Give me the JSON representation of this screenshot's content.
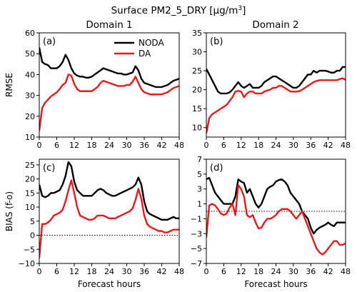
{
  "title_prefix": "Surface PM2_5_DRY [",
  "title_unit_base": "μg/m",
  "title_unit_exp": "3",
  "title_suffix": "]",
  "column_titles": [
    "Domain 1",
    "Domain 2"
  ],
  "xlabel": "Forecast hours",
  "legend": {
    "placement": "upper-right of panel (a)",
    "entries": [
      "NODA",
      "DA"
    ]
  },
  "colors": {
    "NODA": "#000000",
    "DA": "#e41a1c",
    "zero_line": "#000000"
  },
  "chart_data": [
    {
      "type": "line",
      "panel": "(a)",
      "ylabel": "RMSE",
      "xlim": [
        0,
        48
      ],
      "ylim": [
        10,
        60
      ],
      "xticks": [
        0,
        6,
        12,
        18,
        24,
        30,
        36,
        42,
        48
      ],
      "yticks": [
        10,
        20,
        30,
        40,
        50,
        60
      ],
      "zero_line": false,
      "x": [
        0,
        1,
        2,
        3,
        4,
        5,
        6,
        7,
        8,
        9,
        10,
        11,
        12,
        13,
        14,
        15,
        16,
        17,
        18,
        19,
        20,
        21,
        22,
        23,
        24,
        25,
        26,
        27,
        28,
        29,
        30,
        31,
        32,
        33,
        34,
        35,
        36,
        37,
        38,
        39,
        40,
        41,
        42,
        43,
        44,
        45,
        46,
        47,
        48
      ],
      "series": [
        {
          "name": "NODA",
          "values": [
            53,
            46,
            45,
            44.5,
            43,
            43,
            43,
            44,
            46,
            49.5,
            47,
            43,
            40.5,
            39.5,
            39,
            39,
            38.5,
            38.5,
            39,
            40,
            41,
            42,
            43,
            42.5,
            42,
            41.5,
            41,
            40.5,
            40.5,
            40,
            40,
            40.5,
            41,
            44,
            42,
            38,
            36,
            35.5,
            35,
            34.5,
            34,
            34,
            34,
            34.5,
            35,
            36,
            37,
            37.5,
            38
          ]
        },
        {
          "name": "DA",
          "values": [
            13,
            24,
            26.5,
            28,
            29.5,
            30.5,
            31.5,
            33,
            35,
            36,
            40,
            39.5,
            35.5,
            33,
            32,
            32,
            32,
            32,
            32,
            33,
            34,
            36,
            37,
            36.5,
            36,
            35.5,
            35,
            34.5,
            34.5,
            34.5,
            35,
            35,
            36.5,
            39,
            36,
            33,
            31.5,
            31,
            30.5,
            30.5,
            30.5,
            30.5,
            30.5,
            31,
            31.5,
            32.5,
            33.5,
            34,
            34.5
          ]
        }
      ]
    },
    {
      "type": "line",
      "panel": "(b)",
      "ylabel": "",
      "xlim": [
        0,
        48
      ],
      "ylim": [
        7.5,
        35
      ],
      "xticks": [
        0,
        6,
        12,
        18,
        24,
        30,
        36,
        42,
        48
      ],
      "yticks": [
        10,
        15,
        20,
        25,
        30,
        35
      ],
      "zero_line": false,
      "x": [
        0,
        1,
        2,
        3,
        4,
        5,
        6,
        7,
        8,
        9,
        10,
        11,
        12,
        13,
        14,
        15,
        16,
        17,
        18,
        19,
        20,
        21,
        22,
        23,
        24,
        25,
        26,
        27,
        28,
        29,
        30,
        31,
        32,
        33,
        34,
        35,
        36,
        37,
        38,
        39,
        40,
        41,
        42,
        43,
        44,
        45,
        46,
        47,
        48
      ],
      "series": [
        {
          "name": "NODA",
          "values": [
            25.5,
            24,
            22.5,
            21,
            19.5,
            19,
            19,
            19,
            19.3,
            20,
            21,
            22,
            21,
            20.5,
            21,
            21.5,
            20.5,
            20.5,
            20.5,
            21,
            22,
            22.5,
            23,
            23.5,
            23.5,
            23,
            22.5,
            22,
            21.5,
            21,
            20.5,
            20.5,
            21,
            22,
            23,
            24,
            24,
            25,
            24.5,
            25,
            25,
            25,
            24.8,
            24.5,
            24.5,
            25,
            25,
            26,
            26
          ]
        },
        {
          "name": "DA",
          "values": [
            8.5,
            12.5,
            13.5,
            14,
            14.5,
            15,
            15.5,
            16,
            17,
            18,
            19.5,
            19.7,
            19.5,
            18,
            19,
            19.5,
            19.5,
            19,
            19,
            19,
            19.5,
            19.8,
            20,
            20.5,
            20.5,
            21,
            21,
            20.5,
            20,
            19.5,
            19.5,
            19.5,
            19.6,
            20,
            20.5,
            21,
            21.5,
            22,
            22.3,
            22.5,
            22.5,
            22.5,
            22.5,
            22.5,
            22.5,
            22.5,
            22.8,
            23,
            22.6
          ]
        }
      ]
    },
    {
      "type": "line",
      "panel": "(c)",
      "ylabel": "BIAS (f-o)",
      "xlim": [
        0,
        48
      ],
      "ylim": [
        -10,
        27
      ],
      "xticks": [
        0,
        6,
        12,
        18,
        24,
        30,
        36,
        42,
        48
      ],
      "yticks": [
        -10,
        -5,
        0,
        5,
        10,
        15,
        20,
        25
      ],
      "zero_line": true,
      "x": [
        0,
        1,
        2,
        3,
        4,
        5,
        6,
        7,
        8,
        9,
        10,
        11,
        12,
        13,
        14,
        15,
        16,
        17,
        18,
        19,
        20,
        21,
        22,
        23,
        24,
        25,
        26,
        27,
        28,
        29,
        30,
        31,
        32,
        33,
        34,
        35,
        36,
        37,
        38,
        39,
        40,
        41,
        42,
        43,
        44,
        45,
        46,
        47,
        48
      ],
      "series": [
        {
          "name": "NODA",
          "values": [
            18,
            14,
            13.5,
            14,
            15,
            15,
            15.5,
            16,
            18,
            21,
            26,
            24.5,
            19,
            16,
            15,
            14,
            14,
            14,
            14,
            15,
            16,
            16.5,
            16,
            15,
            14.5,
            14,
            14,
            14.5,
            15,
            15.5,
            16,
            16.5,
            17,
            18,
            20.5,
            18,
            12,
            8.5,
            7.5,
            7,
            6.5,
            6,
            5.5,
            5.5,
            5.5,
            6,
            6.5,
            6,
            6
          ]
        },
        {
          "name": "DA",
          "values": [
            -8,
            4,
            4,
            4.5,
            5.5,
            7,
            7.5,
            8,
            9,
            12,
            16,
            19.5,
            15,
            10,
            7,
            6.5,
            6,
            5.5,
            5.5,
            6,
            7,
            7,
            7,
            6.5,
            6,
            6,
            6,
            6.5,
            7,
            7.5,
            8,
            8.5,
            9.5,
            12.5,
            16.5,
            13,
            7,
            4,
            3,
            2.5,
            2,
            1.5,
            1.5,
            1,
            1,
            1.5,
            2,
            2,
            2
          ]
        }
      ]
    },
    {
      "type": "line",
      "panel": "(d)",
      "ylabel": "",
      "xlim": [
        0,
        48
      ],
      "ylim": [
        -7,
        7
      ],
      "xticks": [
        0,
        6,
        12,
        18,
        24,
        30,
        36,
        42,
        48
      ],
      "yticks": [
        -7,
        -5,
        -3,
        -1,
        1,
        3,
        5,
        7
      ],
      "zero_line": true,
      "x": [
        0,
        1,
        2,
        3,
        4,
        5,
        6,
        7,
        8,
        9,
        10,
        11,
        12,
        13,
        14,
        15,
        16,
        17,
        18,
        19,
        20,
        21,
        22,
        23,
        24,
        25,
        26,
        27,
        28,
        29,
        30,
        31,
        32,
        33,
        34,
        35,
        36,
        37,
        38,
        39,
        40,
        41,
        42,
        43,
        44,
        45,
        46,
        47,
        48
      ],
      "series": [
        {
          "name": "NODA",
          "values": [
            4.3,
            4.5,
            3.5,
            2.5,
            2,
            1.5,
            1,
            1,
            1,
            1,
            2,
            4.3,
            4,
            3.8,
            2.5,
            3,
            2,
            1,
            0.5,
            1,
            2,
            3,
            3.3,
            3.5,
            4,
            4.2,
            4.3,
            4,
            3.5,
            2.5,
            2,
            1.5,
            1,
            0,
            -0.5,
            -1,
            -2.2,
            -3,
            -2.5,
            -2.2,
            -2,
            -1.8,
            -1.5,
            -1.8,
            -2,
            -1.5,
            -1.5,
            -1.5,
            -1.5
          ]
        },
        {
          "name": "DA",
          "values": [
            -3.5,
            0.8,
            1,
            0.8,
            0.3,
            -0.3,
            -0.5,
            -0.3,
            0.5,
            1,
            -0.5,
            3.5,
            3,
            2,
            -0.5,
            -0.8,
            -0.5,
            -1.5,
            -2.3,
            -2.2,
            -1.5,
            -1,
            -1,
            -0.8,
            -0.5,
            0,
            0.3,
            0.3,
            0.3,
            0,
            -0.5,
            -1,
            -0.5,
            0,
            -1,
            -2,
            -3,
            -4,
            -5,
            -5.5,
            -5.8,
            -5.5,
            -5,
            -4.5,
            -4,
            -4,
            -4.5,
            -4.5,
            -4.3
          ]
        }
      ]
    }
  ]
}
